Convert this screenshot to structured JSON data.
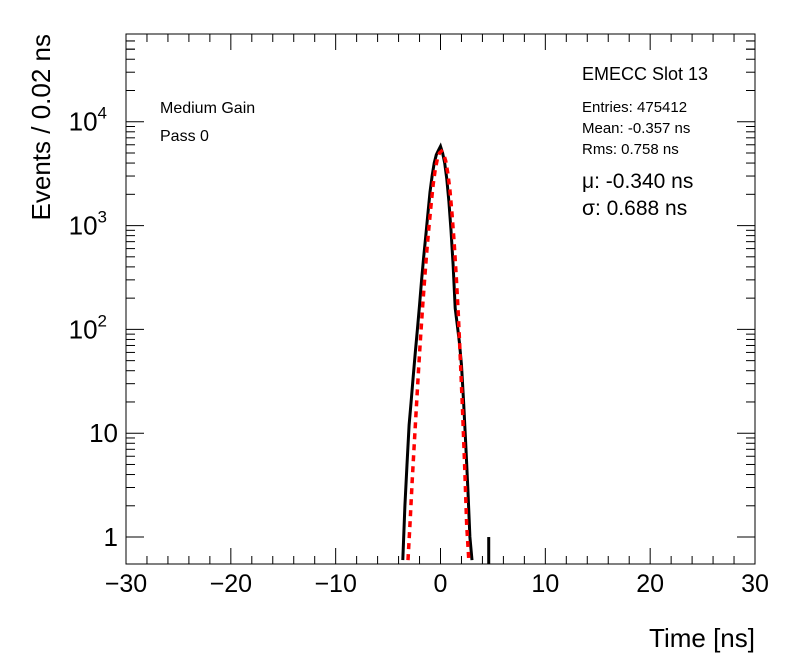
{
  "chart_data": {
    "type": "line",
    "xlabel": "Time [ns]",
    "ylabel": "Events / 0.02 ns",
    "xlim": [
      -30,
      30
    ],
    "ylim": [
      0.55,
      70000
    ],
    "y_scale": "log",
    "grid": false,
    "x_ticks": [
      {
        "value": -30,
        "label": "−30"
      },
      {
        "value": -20,
        "label": "−20"
      },
      {
        "value": -10,
        "label": "−10"
      },
      {
        "value": 0,
        "label": "0"
      },
      {
        "value": 10,
        "label": "10"
      },
      {
        "value": 20,
        "label": "20"
      },
      {
        "value": 30,
        "label": "30"
      }
    ],
    "y_ticks": [
      {
        "value": 1,
        "label": "1",
        "sup": ""
      },
      {
        "value": 10,
        "label": "10",
        "sup": ""
      },
      {
        "value": 100,
        "label": "10",
        "sup": "2"
      },
      {
        "value": 1000,
        "label": "10",
        "sup": "3"
      },
      {
        "value": 10000,
        "label": "10",
        "sup": "4"
      }
    ],
    "annotations": {
      "gain": "Medium Gain",
      "pass": "Pass 0",
      "slot": "EMECC Slot 13",
      "entries": "Entries: 475412",
      "mean": "Mean: -0.357 ns",
      "rms": "Rms: 0.758 ns",
      "mu": "μ: -0.340 ns",
      "sigma": "σ: 0.688 ns"
    },
    "series": [
      {
        "color": "#000000",
        "style": "solid",
        "x": [
          -3.6,
          -3.4,
          -3.2,
          -3.0,
          -2.8,
          -2.6,
          -2.4,
          -2.2,
          -2.0,
          -1.8,
          -1.6,
          -1.4,
          -1.2,
          -1.0,
          -0.8,
          -0.6,
          -0.4,
          -0.2,
          0.0,
          0.2,
          0.4,
          0.6,
          0.8,
          1.0,
          1.2,
          1.4,
          1.6,
          1.8,
          2.0,
          2.2,
          2.4,
          2.6,
          2.8,
          3.0
        ],
        "y": [
          0.6,
          2,
          5,
          12,
          20,
          35,
          60,
          100,
          170,
          300,
          500,
          800,
          1300,
          2100,
          3000,
          4000,
          4800,
          5300,
          5800,
          5000,
          4000,
          2800,
          1700,
          900,
          420,
          160,
          110,
          75,
          45,
          20,
          8,
          3,
          1,
          0.6
        ]
      },
      {
        "color": "#ff0000",
        "style": "dotted",
        "x": [
          -3.1,
          -2.9,
          -2.7,
          -2.5,
          -2.3,
          -2.1,
          -1.9,
          -1.7,
          -1.5,
          -1.3,
          -1.1,
          -0.9,
          -0.7,
          -0.5,
          -0.3,
          -0.1,
          0.1,
          0.3,
          0.5,
          0.7,
          0.9,
          1.1,
          1.3,
          1.5,
          1.7,
          1.9,
          2.1,
          2.3,
          2.5,
          2.7
        ],
        "y": [
          0.6,
          1.4,
          3.5,
          8,
          18,
          40,
          85,
          170,
          320,
          580,
          980,
          1600,
          2500,
          3500,
          4400,
          5000,
          5200,
          4900,
          4200,
          3200,
          2200,
          1300,
          700,
          330,
          140,
          50,
          17,
          5,
          1.3,
          0.6
        ]
      }
    ]
  }
}
